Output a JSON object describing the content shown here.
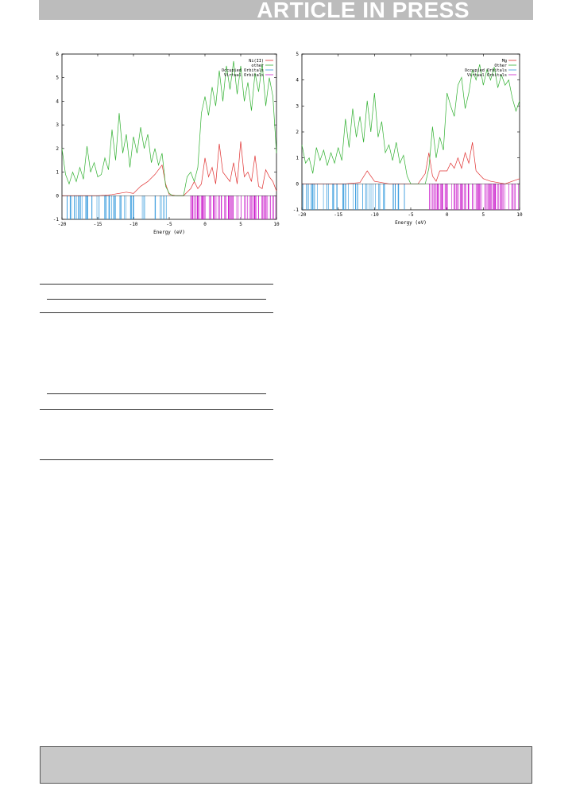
{
  "header": {
    "banner_text": "ARTICLE IN PRESS"
  },
  "chart_data": [
    {
      "type": "line",
      "panel": "left",
      "title": "",
      "xlabel": "Energy (eV)",
      "ylabel": "",
      "xlim": [
        -20,
        10
      ],
      "ylim": [
        -1,
        6
      ],
      "x_ticks": [
        -20,
        -15,
        -10,
        -5,
        0,
        5,
        10
      ],
      "y_ticks": [
        -1,
        0,
        1,
        2,
        3,
        4,
        5,
        6
      ],
      "legend_position": "top-right",
      "grid": false,
      "series": [
        {
          "name": "Ni(II)",
          "color": "#e03030",
          "x": [
            -20,
            -19,
            -18,
            -17,
            -16,
            -15,
            -14,
            -13,
            -12,
            -11,
            -10,
            -9,
            -8,
            -7,
            -6,
            -5.5,
            -5,
            -4,
            -3,
            -2,
            -1.5,
            -1,
            -0.5,
            0,
            0.5,
            1,
            1.5,
            2,
            2.5,
            3,
            3.5,
            4,
            4.5,
            5,
            5.5,
            6,
            6.5,
            7,
            7.5,
            8,
            8.5,
            9,
            9.5,
            10
          ],
          "y": [
            0,
            0,
            0,
            0,
            0,
            0,
            0.02,
            0.05,
            0.1,
            0.15,
            0.1,
            0.4,
            0.6,
            0.9,
            1.3,
            0.5,
            0.05,
            0,
            0,
            0.3,
            0.6,
            0.3,
            0.5,
            1.6,
            0.8,
            1.2,
            0.5,
            2.2,
            1.0,
            0.8,
            0.6,
            1.4,
            0.5,
            2.3,
            0.8,
            1.0,
            0.6,
            1.7,
            0.4,
            0.3,
            1.1,
            0.8,
            0.6,
            0.2
          ]
        },
        {
          "name": "other",
          "color": "#30b030",
          "x": [
            -20,
            -19.5,
            -19,
            -18.5,
            -18,
            -17.5,
            -17,
            -16.5,
            -16,
            -15.5,
            -15,
            -14.5,
            -14,
            -13.5,
            -13,
            -12.5,
            -12,
            -11.5,
            -11,
            -10.5,
            -10,
            -9.5,
            -9,
            -8.5,
            -8,
            -7.5,
            -7,
            -6.5,
            -6,
            -5.5,
            -5,
            -4.5,
            -4,
            -3.5,
            -3,
            -2.5,
            -2,
            -1.5,
            -1,
            -0.5,
            0,
            0.5,
            1,
            1.5,
            2,
            2.5,
            3,
            3.5,
            4,
            4.5,
            5,
            5.5,
            6,
            6.5,
            7,
            7.5,
            8,
            8.5,
            9,
            9.5,
            10
          ],
          "y": [
            2.0,
            0.9,
            0.5,
            1.0,
            0.6,
            1.2,
            0.7,
            2.1,
            1.0,
            1.4,
            0.8,
            0.9,
            1.6,
            1.1,
            2.8,
            1.5,
            3.5,
            1.8,
            2.6,
            1.2,
            2.5,
            1.8,
            2.9,
            2.0,
            2.6,
            1.4,
            2.0,
            1.3,
            1.8,
            0.4,
            0.1,
            0,
            0,
            0,
            0,
            0.8,
            1.0,
            0.6,
            1.2,
            3.5,
            4.2,
            3.4,
            4.6,
            3.8,
            5.3,
            4.0,
            5.5,
            4.5,
            5.7,
            4.3,
            5.5,
            4.0,
            4.8,
            3.6,
            5.2,
            4.4,
            5.6,
            3.8,
            5.0,
            4.2,
            1.8
          ]
        }
      ],
      "occupied_orbitals": {
        "name": "Occupied Orbitals",
        "color": "#3399dd",
        "range": [
          -20,
          -5.2
        ]
      },
      "virtual_orbitals": {
        "name": "Virtual Orbitals",
        "color": "#cc22cc",
        "range": [
          -2,
          10
        ]
      }
    },
    {
      "type": "line",
      "panel": "right",
      "title": "",
      "xlabel": "Energy (eV)",
      "ylabel": "",
      "xlim": [
        -20,
        10
      ],
      "ylim": [
        -1,
        5
      ],
      "x_ticks": [
        -20,
        -15,
        -10,
        -5,
        0,
        5,
        10
      ],
      "y_ticks": [
        -1,
        0,
        1,
        2,
        3,
        4,
        5
      ],
      "legend_position": "top-right",
      "grid": false,
      "series": [
        {
          "name": "Mg",
          "color": "#e03030",
          "x": [
            -20,
            -18,
            -16,
            -14,
            -12,
            -11,
            -10,
            -9,
            -8,
            -6,
            -4,
            -3,
            -2.5,
            -2,
            -1.5,
            -1,
            0,
            0.5,
            1,
            1.5,
            2,
            2.5,
            3,
            3.5,
            4,
            5,
            6,
            7,
            8,
            9,
            10
          ],
          "y": [
            0,
            0,
            0,
            0,
            0.05,
            0.5,
            0.1,
            0.05,
            0,
            0,
            0,
            0.4,
            1.2,
            0.3,
            0.1,
            0.5,
            0.5,
            0.8,
            0.6,
            1.0,
            0.6,
            1.2,
            0.8,
            1.6,
            0.5,
            0.2,
            0.1,
            0.05,
            0,
            0.1,
            0.2
          ]
        },
        {
          "name": "Other",
          "color": "#30b030",
          "x": [
            -20,
            -19.5,
            -19,
            -18.5,
            -18,
            -17.5,
            -17,
            -16.5,
            -16,
            -15.5,
            -15,
            -14.5,
            -14,
            -13.5,
            -13,
            -12.5,
            -12,
            -11.5,
            -11,
            -10.5,
            -10,
            -9.5,
            -9,
            -8.5,
            -8,
            -7.5,
            -7,
            -6.5,
            -6,
            -5.5,
            -5,
            -4.5,
            -4,
            -3.5,
            -3,
            -2.5,
            -2,
            -1.5,
            -1,
            -0.5,
            0,
            0.5,
            1,
            1.5,
            2,
            2.5,
            3,
            3.5,
            4,
            4.5,
            5,
            5.5,
            6,
            6.5,
            7,
            7.5,
            8,
            8.5,
            9,
            9.5,
            10
          ],
          "y": [
            1.5,
            0.8,
            1.0,
            0.4,
            1.4,
            0.9,
            1.3,
            0.7,
            1.2,
            0.8,
            1.4,
            0.9,
            2.5,
            1.4,
            2.9,
            1.8,
            2.6,
            1.6,
            3.2,
            2.0,
            3.5,
            1.8,
            2.4,
            1.2,
            1.5,
            0.9,
            1.6,
            0.8,
            1.1,
            0.3,
            0,
            0,
            0,
            0,
            0,
            0.6,
            2.2,
            1.0,
            1.8,
            1.3,
            3.5,
            3.0,
            2.6,
            3.8,
            4.1,
            2.9,
            3.5,
            4.4,
            4.0,
            4.6,
            3.8,
            4.4,
            4.0,
            4.5,
            3.7,
            4.2,
            3.8,
            4.0,
            3.3,
            2.8,
            3.2
          ]
        }
      ],
      "occupied_orbitals": {
        "name": "Occupied Orbitals",
        "color": "#3399dd",
        "range": [
          -20,
          -5.5
        ]
      },
      "virtual_orbitals": {
        "name": "Virtual Orbitals",
        "color": "#cc22cc",
        "range": [
          -2.5,
          10
        ]
      }
    }
  ]
}
